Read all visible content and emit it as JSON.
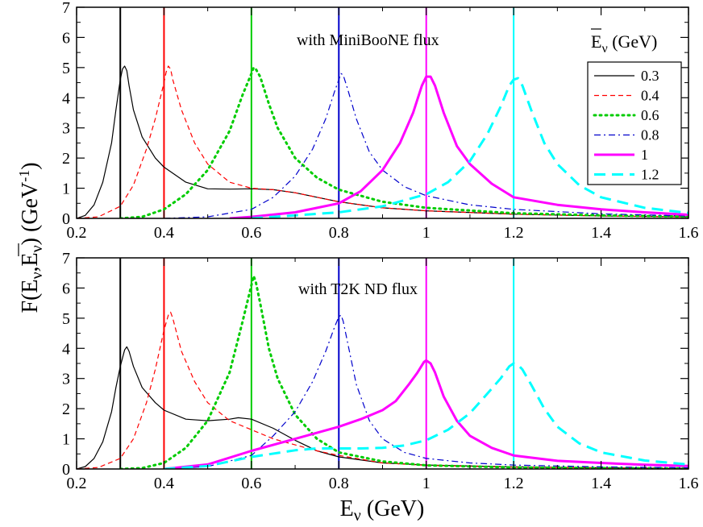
{
  "chart_data": {
    "type": "line",
    "ylabel": {
      "prefix": "F(E",
      "sub1": "ν",
      "mid": ",",
      "ebar": "E",
      "sub2": "ν",
      "unit": ")  (GeV",
      "exp": "-1",
      "close": ")"
    },
    "xlabel": {
      "main": "E",
      "sub": "ν",
      "unit": "  (GeV)"
    },
    "legend": {
      "title_main": "E",
      "title_sub": "ν",
      "title_unit": "  (GeV)",
      "entries": [
        {
          "label": "0.3",
          "color": "#000000",
          "style": "solid",
          "width": 1.2
        },
        {
          "label": "0.4",
          "color": "#ff0000",
          "style": "dashed",
          "width": 1.2
        },
        {
          "label": "0.6",
          "color": "#00cc00",
          "style": "dotted",
          "width": 3
        },
        {
          "label": "0.8",
          "color": "#0000cc",
          "style": "dashdot",
          "width": 1.2
        },
        {
          "label": "1",
          "color": "#ff00ff",
          "style": "solid",
          "width": 3
        },
        {
          "label": "1.2",
          "color": "#00ffff",
          "style": "longdash",
          "width": 3
        }
      ]
    },
    "xlim": [
      0.2,
      1.6
    ],
    "xticks": [
      "0.2",
      "0.4",
      "0.6",
      "0.8",
      "1",
      "1.2",
      "1.4",
      "1.6"
    ],
    "yticks": [
      "0",
      "1",
      "2",
      "3",
      "4",
      "5",
      "6",
      "7"
    ],
    "vlines": [
      0.3,
      0.4,
      0.6,
      0.8,
      1.0,
      1.2
    ],
    "vline_colors": [
      "#000000",
      "#ff0000",
      "#00cc00",
      "#0000cc",
      "#ff00ff",
      "#00ffff"
    ],
    "panels": [
      {
        "title": "with MiniBooNE flux",
        "ylim": [
          0,
          7
        ],
        "series": [
          {
            "name": "0.3",
            "x": [
              0.2,
              0.22,
              0.24,
              0.26,
              0.28,
              0.29,
              0.3,
              0.305,
              0.31,
              0.315,
              0.32,
              0.33,
              0.35,
              0.38,
              0.4,
              0.45,
              0.5,
              0.55,
              0.6,
              0.65,
              0.7,
              0.75,
              0.8,
              0.9,
              1.0,
              1.2,
              1.4,
              1.6
            ],
            "y": [
              0,
              0.1,
              0.45,
              1.2,
              2.5,
              3.6,
              4.6,
              4.95,
              5.05,
              4.9,
              4.4,
              3.6,
              2.7,
              2.0,
              1.7,
              1.2,
              0.98,
              0.97,
              0.98,
              0.95,
              0.85,
              0.7,
              0.55,
              0.35,
              0.25,
              0.14,
              0.08,
              0.05
            ]
          },
          {
            "name": "0.4",
            "x": [
              0.2,
              0.25,
              0.3,
              0.33,
              0.36,
              0.38,
              0.4,
              0.405,
              0.41,
              0.415,
              0.42,
              0.44,
              0.47,
              0.5,
              0.55,
              0.6,
              0.65,
              0.7,
              0.75,
              0.8,
              0.9,
              1.0,
              1.2,
              1.4,
              1.6
            ],
            "y": [
              0,
              0.05,
              0.4,
              1.1,
              2.3,
              3.3,
              4.5,
              4.85,
              5.05,
              4.95,
              4.6,
              3.6,
              2.5,
              1.8,
              1.2,
              1.0,
              0.95,
              0.85,
              0.7,
              0.55,
              0.35,
              0.25,
              0.14,
              0.08,
              0.05
            ]
          },
          {
            "name": "0.6",
            "x": [
              0.3,
              0.35,
              0.4,
              0.45,
              0.5,
              0.55,
              0.58,
              0.6,
              0.605,
              0.61,
              0.62,
              0.64,
              0.66,
              0.7,
              0.75,
              0.8,
              0.9,
              1.0,
              1.2,
              1.4,
              1.6
            ],
            "y": [
              0,
              0.05,
              0.3,
              0.8,
              1.6,
              2.9,
              4.1,
              4.8,
              5.0,
              4.95,
              4.7,
              3.8,
              3.0,
              2.0,
              1.35,
              0.95,
              0.55,
              0.35,
              0.17,
              0.1,
              0.06
            ]
          },
          {
            "name": "0.8",
            "x": [
              0.4,
              0.5,
              0.6,
              0.65,
              0.7,
              0.74,
              0.77,
              0.79,
              0.8,
              0.805,
              0.81,
              0.82,
              0.84,
              0.87,
              0.9,
              0.95,
              1.0,
              1.1,
              1.2,
              1.4,
              1.6
            ],
            "y": [
              0,
              0.05,
              0.3,
              0.7,
              1.4,
              2.3,
              3.3,
              4.2,
              4.6,
              4.8,
              4.75,
              4.3,
              3.3,
              2.2,
              1.6,
              1.05,
              0.75,
              0.45,
              0.3,
              0.15,
              0.08
            ]
          },
          {
            "name": "1",
            "x": [
              0.55,
              0.6,
              0.7,
              0.8,
              0.85,
              0.9,
              0.94,
              0.97,
              0.99,
              1.0,
              1.01,
              1.02,
              1.04,
              1.07,
              1.1,
              1.15,
              1.2,
              1.3,
              1.4,
              1.5,
              1.6
            ],
            "y": [
              0,
              0.05,
              0.2,
              0.5,
              0.9,
              1.6,
              2.5,
              3.5,
              4.4,
              4.7,
              4.7,
              4.4,
              3.5,
              2.4,
              1.8,
              1.15,
              0.7,
              0.45,
              0.3,
              0.2,
              0.12
            ]
          },
          {
            "name": "1.2",
            "x": [
              0.6,
              0.8,
              0.9,
              1.0,
              1.05,
              1.1,
              1.14,
              1.17,
              1.19,
              1.2,
              1.21,
              1.22,
              1.24,
              1.27,
              1.3,
              1.35,
              1.4,
              1.5,
              1.6
            ],
            "y": [
              0,
              0.2,
              0.4,
              0.8,
              1.2,
              1.9,
              2.8,
              3.7,
              4.4,
              4.6,
              4.65,
              4.4,
              3.6,
              2.5,
              1.8,
              1.1,
              0.7,
              0.35,
              0.18
            ]
          }
        ]
      },
      {
        "title": "with T2K ND flux",
        "ylim": [
          0,
          7
        ],
        "series": [
          {
            "name": "0.3",
            "x": [
              0.2,
              0.22,
              0.24,
              0.26,
              0.28,
              0.29,
              0.3,
              0.31,
              0.315,
              0.32,
              0.33,
              0.35,
              0.38,
              0.4,
              0.45,
              0.5,
              0.55,
              0.57,
              0.6,
              0.65,
              0.7,
              0.75,
              0.8,
              0.9,
              1.0,
              1.2,
              1.4,
              1.6
            ],
            "y": [
              0,
              0.08,
              0.35,
              0.9,
              1.9,
              2.7,
              3.4,
              3.95,
              4.05,
              3.9,
              3.4,
              2.7,
              2.2,
              1.95,
              1.65,
              1.6,
              1.65,
              1.7,
              1.65,
              1.35,
              0.95,
              0.6,
              0.4,
              0.2,
              0.13,
              0.07,
              0.04,
              0.02
            ]
          },
          {
            "name": "0.4",
            "x": [
              0.2,
              0.25,
              0.3,
              0.33,
              0.36,
              0.38,
              0.4,
              0.41,
              0.415,
              0.42,
              0.44,
              0.47,
              0.5,
              0.55,
              0.6,
              0.65,
              0.7,
              0.75,
              0.8,
              0.9,
              1.0,
              1.2,
              1.4,
              1.6
            ],
            "y": [
              0,
              0.05,
              0.35,
              1.0,
              2.2,
              3.3,
              4.6,
              5.1,
              5.2,
              5.0,
              3.9,
              2.9,
              2.2,
              1.6,
              1.3,
              1.0,
              0.8,
              0.6,
              0.45,
              0.2,
              0.12,
              0.06,
              0.04,
              0.02
            ]
          },
          {
            "name": "0.6",
            "x": [
              0.3,
              0.35,
              0.4,
              0.45,
              0.5,
              0.55,
              0.58,
              0.6,
              0.605,
              0.61,
              0.62,
              0.64,
              0.66,
              0.7,
              0.75,
              0.8,
              0.9,
              1.0,
              1.2,
              1.4,
              1.6
            ],
            "y": [
              0,
              0.03,
              0.2,
              0.7,
              1.6,
              3.2,
              4.9,
              6.1,
              6.4,
              6.2,
              5.5,
              4.0,
              3.0,
              1.8,
              1.0,
              0.55,
              0.25,
              0.12,
              0.05,
              0.03,
              0.02
            ]
          },
          {
            "name": "0.8",
            "x": [
              0.4,
              0.5,
              0.6,
              0.65,
              0.7,
              0.74,
              0.77,
              0.79,
              0.8,
              0.805,
              0.81,
              0.82,
              0.84,
              0.87,
              0.9,
              0.95,
              1.0,
              1.1,
              1.2,
              1.4,
              1.6
            ],
            "y": [
              0,
              0.08,
              0.45,
              1.1,
              1.9,
              2.9,
              3.9,
              4.7,
              5.05,
              5.1,
              4.9,
              4.2,
              2.8,
              1.6,
              1.0,
              0.55,
              0.35,
              0.2,
              0.13,
              0.07,
              0.04
            ]
          },
          {
            "name": "1",
            "x": [
              0.4,
              0.5,
              0.6,
              0.7,
              0.8,
              0.85,
              0.9,
              0.93,
              0.96,
              0.98,
              0.995,
              1.0,
              1.01,
              1.02,
              1.04,
              1.07,
              1.1,
              1.15,
              1.2,
              1.3,
              1.4,
              1.5,
              1.6
            ],
            "y": [
              0,
              0.15,
              0.6,
              1.0,
              1.4,
              1.65,
              1.95,
              2.25,
              2.8,
              3.2,
              3.55,
              3.6,
              3.5,
              3.2,
              2.4,
              1.6,
              1.1,
              0.7,
              0.45,
              0.27,
              0.2,
              0.14,
              0.1
            ]
          },
          {
            "name": "1.2",
            "x": [
              0.4,
              0.5,
              0.6,
              0.7,
              0.75,
              0.8,
              0.85,
              0.9,
              0.95,
              1.0,
              1.05,
              1.1,
              1.14,
              1.17,
              1.19,
              1.2,
              1.21,
              1.22,
              1.24,
              1.27,
              1.3,
              1.35,
              1.4,
              1.5,
              1.6
            ],
            "y": [
              0,
              0.1,
              0.4,
              0.62,
              0.68,
              0.68,
              0.68,
              0.7,
              0.78,
              0.95,
              1.3,
              1.85,
              2.5,
              3.0,
              3.4,
              3.5,
              3.45,
              3.3,
              2.8,
              2.0,
              1.4,
              0.85,
              0.55,
              0.28,
              0.15
            ]
          }
        ]
      }
    ]
  }
}
